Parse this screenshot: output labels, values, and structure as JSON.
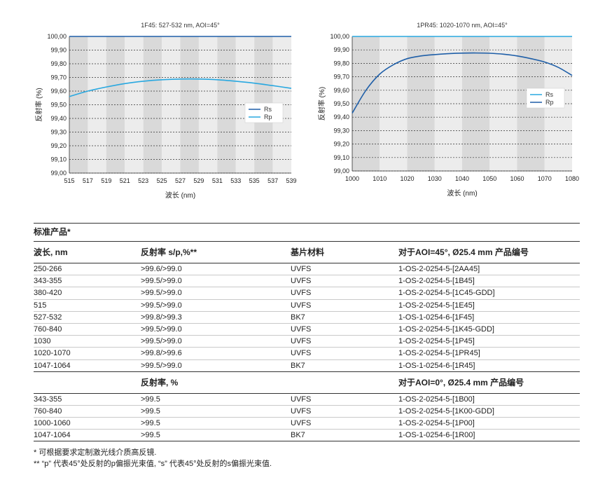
{
  "chart_data": [
    {
      "type": "line",
      "title": "1F45: 527-532 nm, AOI=45°",
      "xlabel": "波长 (nm)",
      "ylabel": "反射率 (%)",
      "xlim": [
        515,
        539
      ],
      "ylim": [
        99.0,
        100.0
      ],
      "x_ticks": [
        "515",
        "517",
        "519",
        "521",
        "523",
        "525",
        "527",
        "529",
        "531",
        "533",
        "535",
        "537",
        "539"
      ],
      "y_ticks": [
        "99,00",
        "99,10",
        "99,20",
        "99,30",
        "99,40",
        "99,50",
        "99,60",
        "99,70",
        "99,80",
        "99,90",
        "100,00"
      ],
      "legend": "right",
      "series": [
        {
          "name": "Rs",
          "color": "#1f5fa8",
          "x": [
            515,
            539
          ],
          "y": [
            100.0,
            100.0
          ]
        },
        {
          "name": "Rp",
          "color": "#29a8e0",
          "x": [
            515,
            517,
            519,
            521,
            523,
            525,
            527,
            529,
            531,
            533,
            535,
            537,
            539
          ],
          "y": [
            99.56,
            99.6,
            99.63,
            99.655,
            99.672,
            99.683,
            99.688,
            99.688,
            99.683,
            99.672,
            99.658,
            99.64,
            99.62
          ]
        }
      ]
    },
    {
      "type": "line",
      "title": "1PR45: 1020-1070 nm, AOI=45°",
      "xlabel": "波长 (nm)",
      "ylabel": "反射率 (%)",
      "xlim": [
        1000,
        1080
      ],
      "ylim": [
        99.0,
        100.0
      ],
      "x_ticks": [
        "1000",
        "1010",
        "1020",
        "1030",
        "1040",
        "1050",
        "1060",
        "1070",
        "1080"
      ],
      "y_ticks": [
        "99,00",
        "99,10",
        "99,20",
        "99,30",
        "99,40",
        "99,50",
        "99,60",
        "99,70",
        "99,80",
        "99,90",
        "100,00"
      ],
      "legend": "right",
      "series": [
        {
          "name": "Rs",
          "color": "#29a8e0",
          "x": [
            1000,
            1080
          ],
          "y": [
            100.0,
            100.0
          ]
        },
        {
          "name": "Rp",
          "color": "#1f5fa8",
          "x": [
            1000,
            1005,
            1010,
            1015,
            1020,
            1025,
            1030,
            1035,
            1040,
            1045,
            1050,
            1055,
            1060,
            1065,
            1070,
            1075,
            1080
          ],
          "y": [
            99.43,
            99.6,
            99.72,
            99.79,
            99.835,
            99.855,
            99.865,
            99.872,
            99.876,
            99.877,
            99.875,
            99.868,
            99.855,
            99.835,
            99.81,
            99.77,
            99.71
          ]
        }
      ]
    }
  ],
  "table": {
    "title": "标准产品*",
    "headers": [
      "波长, nm",
      "反射率 s/p,%**",
      "基片材料",
      "对于AOI=45°, Ø25.4 mm 产品编号"
    ],
    "rows": [
      [
        "250-266",
        ">99.6/>99.0",
        "UVFS",
        "1-OS-2-0254-5-[2AA45]"
      ],
      [
        "343-355",
        ">99.5/>99.0",
        "UVFS",
        "1-OS-2-0254-5-[1B45]"
      ],
      [
        "380-420",
        ">99.5/>99.0",
        "UVFS",
        "1-OS-2-0254-5-[1C45-GDD]"
      ],
      [
        "515",
        ">99.5/>99.0",
        "UVFS",
        "1-OS-2-0254-5-[1E45]"
      ],
      [
        "527-532",
        ">99.8/>99.3",
        "BK7",
        "1-OS-1-0254-6-[1F45]"
      ],
      [
        "760-840",
        ">99.5/>99.0",
        "UVFS",
        "1-OS-2-0254-5-[1K45-GDD]"
      ],
      [
        "1030",
        ">99.5/>99.0",
        "UVFS",
        "1-OS-2-0254-5-[1P45]"
      ],
      [
        "1020-1070",
        ">99.8/>99.6",
        "UVFS",
        "1-OS-2-0254-5-[1PR45]"
      ],
      [
        "1047-1064",
        ">99.5/>99.0",
        "BK7",
        "1-OS-1-0254-6-[1R45]"
      ]
    ],
    "headers2": [
      "",
      "反射率, %",
      "",
      "对于AOI=0°, Ø25.4 mm 产品编号"
    ],
    "rows2": [
      [
        "343-355",
        ">99.5",
        "UVFS",
        "1-OS-2-0254-5-[1B00]"
      ],
      [
        "760-840",
        ">99.5",
        "UVFS",
        "1-OS-2-0254-5-[1K00-GDD]"
      ],
      [
        "1000-1060",
        ">99.5",
        "UVFS",
        "1-OS-2-0254-5-[1P00]"
      ],
      [
        "1047-1064",
        ">99.5",
        "BK7",
        "1-OS-1-0254-6-[1R00]"
      ]
    ]
  },
  "notes": [
    "* 可根据要求定制激光线介质高反镜.",
    "** “p” 代表45°处反射的p偏振光束值, “s” 代表45°处反射的s偏振光束值."
  ]
}
